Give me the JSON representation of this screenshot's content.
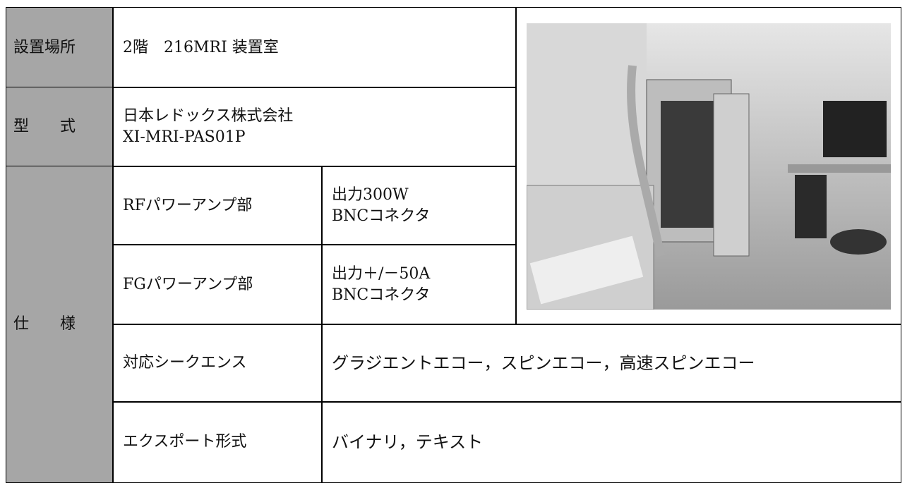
{
  "table": {
    "rows": [
      {
        "label": "設置場所",
        "value": "2階　216MRI 装置室"
      },
      {
        "label": "型　　式",
        "value_lines": [
          "日本レドックス株式会社",
          "XI-MRI-PAS01P"
        ]
      },
      {
        "label": "仕　　様",
        "items": [
          {
            "name": "RFパワーアンプ部",
            "lines": [
              "出力300W",
              "BNCコネクタ"
            ]
          },
          {
            "name": "FGパワーアンプ部",
            "lines": [
              "出力＋/－50A",
              "BNCコネクタ"
            ]
          },
          {
            "name": "対応シークエンス",
            "value": "グラジエントエコー，スピンエコー，高速スピンエコー"
          },
          {
            "name": "エクスポート形式",
            "value": "バイナリ，テキスト"
          }
        ]
      }
    ]
  }
}
